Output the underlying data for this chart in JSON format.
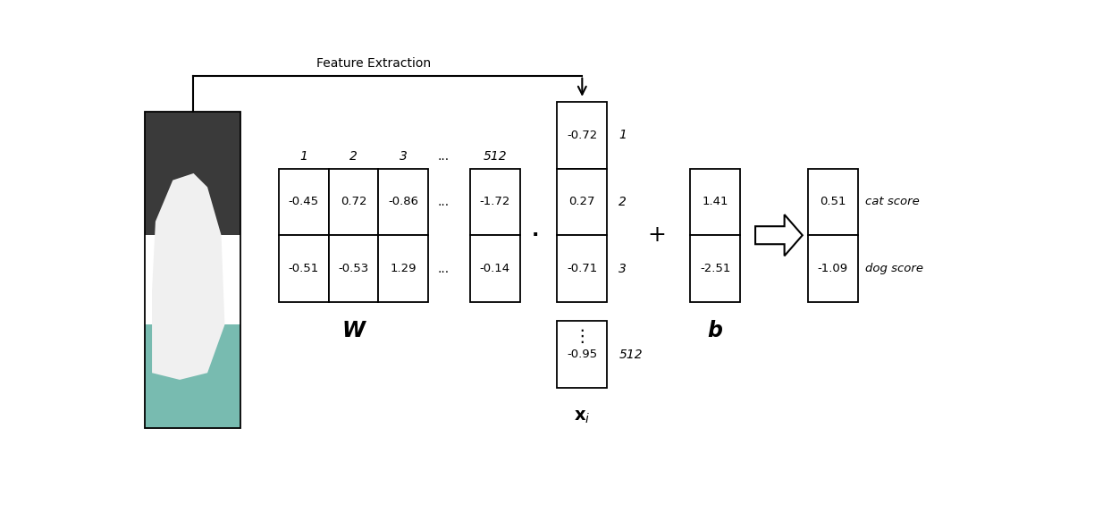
{
  "background_color": "#ffffff",
  "feature_extraction_text": "Feature Extraction",
  "W_label": "W",
  "b_label": "b",
  "dot_symbol": "·",
  "plus_symbol": "+",
  "W_col_headers": [
    "1",
    "2",
    "3",
    "512"
  ],
  "W_row1": [
    "-0.45",
    "0.72",
    "-0.86",
    "-1.72"
  ],
  "W_row2": [
    "-0.51",
    "-0.53",
    "1.29",
    "-0.14"
  ],
  "x_vals": [
    "-0.72",
    "0.27",
    "-0.71"
  ],
  "x_row_labels": [
    "1",
    "2",
    "3"
  ],
  "x_bottom_val": "-0.95",
  "x_bottom_label": "512",
  "b_vals": [
    "1.41",
    "-2.51"
  ],
  "result_vals": [
    "0.51",
    "-1.09"
  ],
  "result_labels": [
    "cat score",
    "dog score"
  ]
}
